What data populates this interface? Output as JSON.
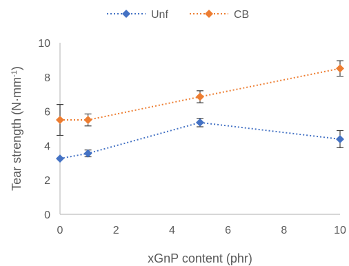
{
  "chart_data": {
    "type": "line",
    "xlabel": "xGnP content (phr)",
    "ylabel_main": "Tear strength (N·mm",
    "ylabel_sup": "-1",
    "ylabel_end": ")",
    "xlim": [
      0,
      10
    ],
    "ylim": [
      0,
      10
    ],
    "xticks": [
      0,
      2,
      4,
      6,
      8,
      10
    ],
    "yticks": [
      0,
      2,
      4,
      6,
      8,
      10
    ],
    "legend_position": "top",
    "grid": false,
    "series": [
      {
        "name": "Unf",
        "color": "#4472c4",
        "marker": "diamond",
        "line_style": "dotted",
        "points": [
          {
            "x": 0,
            "y": 3.25,
            "err": 0.0
          },
          {
            "x": 1,
            "y": 3.55,
            "err": 0.2
          },
          {
            "x": 5,
            "y": 5.35,
            "err": 0.25
          },
          {
            "x": 10,
            "y": 4.38,
            "err": 0.5
          }
        ]
      },
      {
        "name": "CB",
        "color": "#ed7d31",
        "marker": "diamond",
        "line_style": "dotted",
        "points": [
          {
            "x": 0,
            "y": 5.5,
            "err": 0.9
          },
          {
            "x": 1,
            "y": 5.5,
            "err": 0.35
          },
          {
            "x": 5,
            "y": 6.85,
            "err": 0.35
          },
          {
            "x": 10,
            "y": 8.5,
            "err": 0.45
          }
        ]
      }
    ]
  }
}
